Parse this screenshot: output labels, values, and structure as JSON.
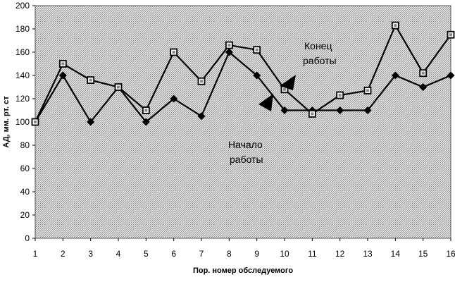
{
  "chart_data": {
    "type": "line",
    "title": "",
    "xlabel": "Пор. номер обследуемого",
    "ylabel": "АД, мм. рт. ст",
    "x": [
      1,
      2,
      3,
      4,
      5,
      6,
      7,
      8,
      9,
      10,
      11,
      12,
      13,
      14,
      15,
      16
    ],
    "ylim": [
      0,
      200
    ],
    "yticks": [
      0,
      20,
      40,
      60,
      80,
      100,
      120,
      140,
      160,
      180,
      200
    ],
    "grid": false,
    "legend": "none",
    "series": [
      {
        "name": "Начало работы",
        "marker": "diamond",
        "values": [
          100,
          140,
          100,
          130,
          100,
          120,
          105,
          160,
          140,
          110,
          110,
          110,
          110,
          140,
          130,
          140
        ]
      },
      {
        "name": "Конец работы",
        "marker": "square",
        "values": [
          100,
          150,
          136,
          130,
          110,
          160,
          135,
          166,
          162,
          128,
          107,
          123,
          127,
          183,
          142,
          175
        ]
      }
    ],
    "annotations": [
      {
        "text_line1": "Конец",
        "text_line2": "работы",
        "points_to": {
          "x": 10,
          "y": 135
        }
      },
      {
        "text_line1": "Начало",
        "text_line2": "работы",
        "points_to": {
          "x": 9.4,
          "y": 118
        }
      }
    ]
  }
}
